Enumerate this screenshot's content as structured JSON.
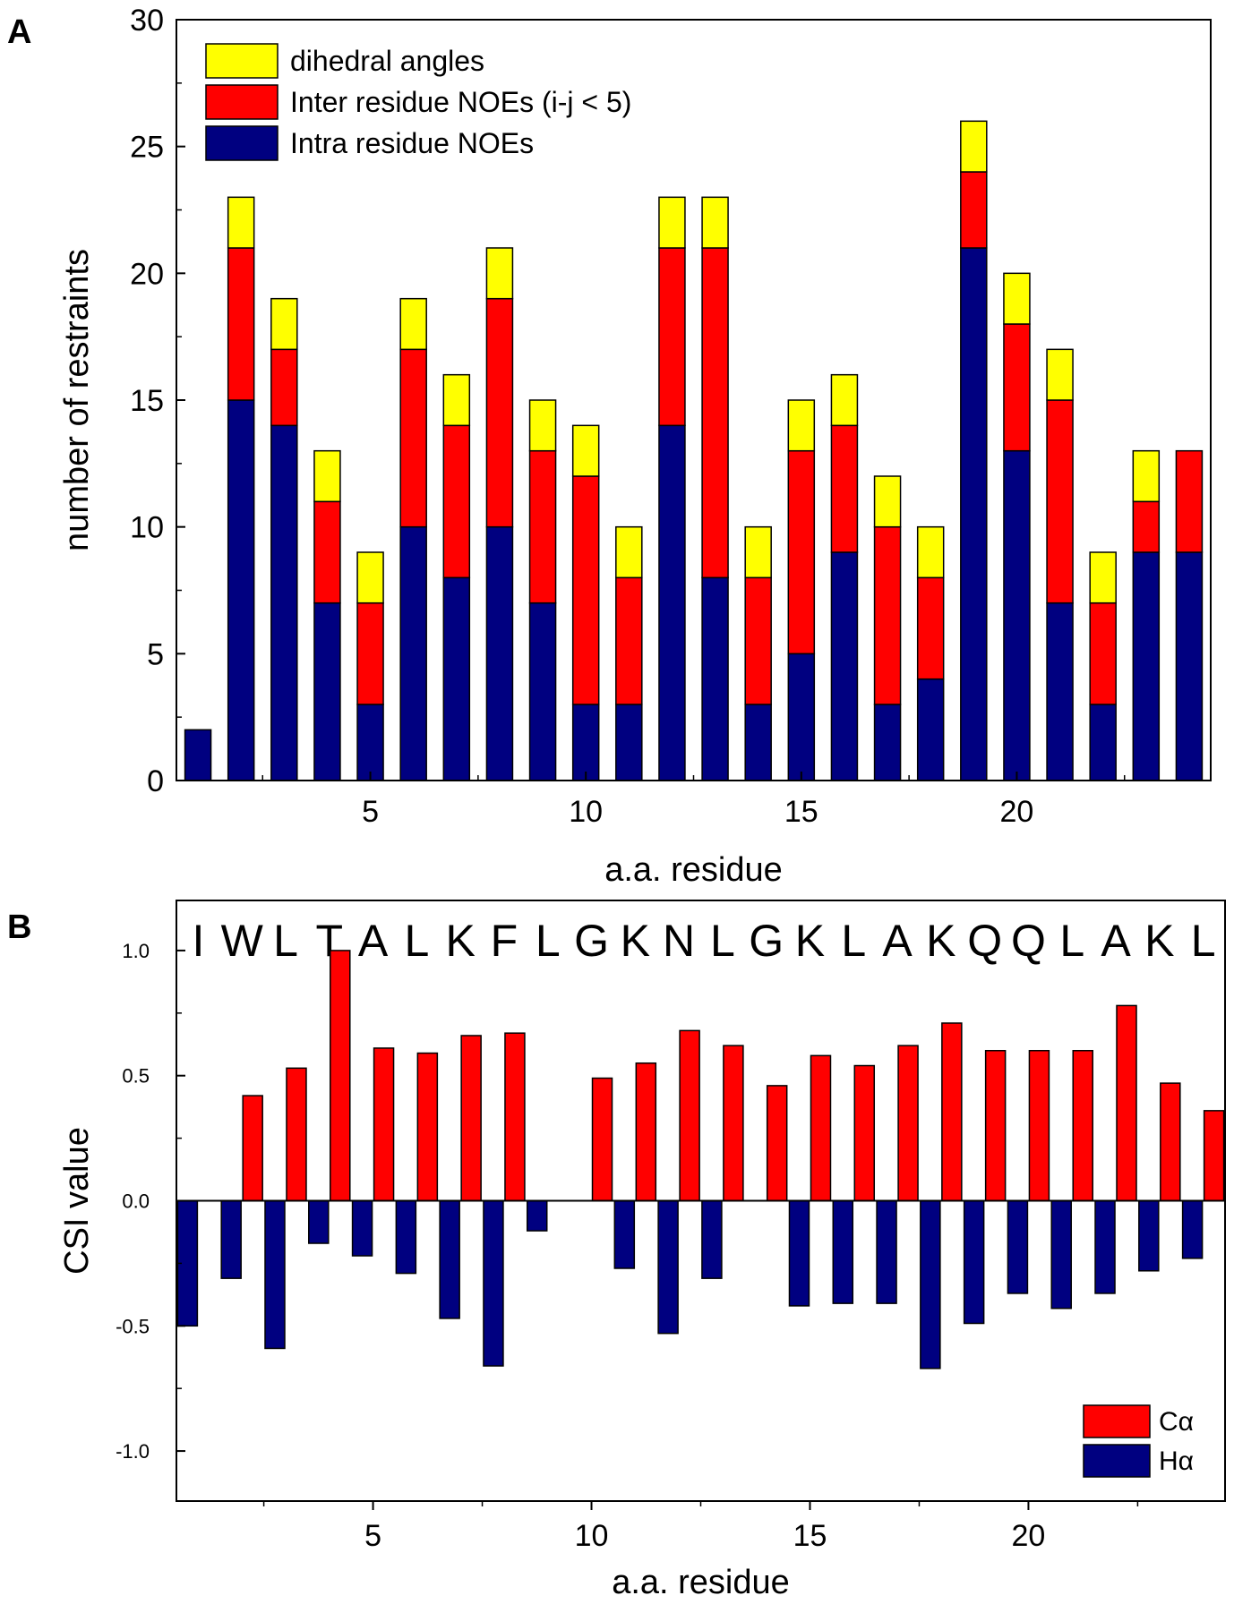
{
  "colors": {
    "dihedral": "#ffff00",
    "inter": "#ff0000",
    "intra": "#000080",
    "calpha": "#ff0000",
    "halpha": "#000080",
    "axis": "#000000"
  },
  "chart_data": [
    {
      "panel": "A",
      "type": "bar",
      "stacked": true,
      "xlabel": "a.a. residue",
      "ylabel": "number of restraints",
      "xlim": [
        0.5,
        24.5
      ],
      "ylim": [
        0,
        30
      ],
      "xticks": [
        5,
        10,
        15,
        20
      ],
      "yticks": [
        0,
        5,
        10,
        15,
        20,
        25,
        30
      ],
      "legend_position": "top-left",
      "x": [
        1,
        2,
        3,
        4,
        5,
        6,
        7,
        8,
        9,
        10,
        11,
        12,
        13,
        14,
        15,
        16,
        17,
        18,
        19,
        20,
        21,
        22,
        23,
        24
      ],
      "series": [
        {
          "name": "Intra residue NOEs",
          "key": "intra",
          "values": [
            2,
            15,
            14,
            7,
            3,
            10,
            8,
            10,
            7,
            3,
            3,
            14,
            8,
            3,
            5,
            9,
            3,
            4,
            21,
            13,
            7,
            3,
            9,
            9
          ]
        },
        {
          "name": "Inter residue NOEs (i-j < 5)",
          "key": "inter",
          "values": [
            0,
            6,
            3,
            4,
            4,
            7,
            6,
            9,
            6,
            9,
            5,
            7,
            13,
            5,
            8,
            5,
            7,
            4,
            3,
            5,
            8,
            4,
            2,
            4
          ]
        },
        {
          "name": "dihedral angles",
          "key": "dihedral",
          "values": [
            0,
            2,
            2,
            2,
            2,
            2,
            2,
            2,
            2,
            2,
            2,
            2,
            2,
            2,
            2,
            2,
            2,
            2,
            2,
            2,
            2,
            2,
            2,
            0
          ]
        }
      ],
      "legend_order": [
        "dihedral",
        "inter",
        "intra"
      ]
    },
    {
      "panel": "B",
      "type": "bar",
      "grouped": true,
      "xlabel": "a.a. residue",
      "ylabel": "CSI value",
      "xlim": [
        0.5,
        24.5
      ],
      "ylim": [
        -1.2,
        1.2
      ],
      "xticks": [
        5,
        10,
        15,
        20
      ],
      "yticks": [
        -1.0,
        -0.5,
        0.0,
        0.5,
        1.0
      ],
      "ytick_labels": [
        "-1.0",
        "-0.5",
        "0.0",
        "0.5",
        "1.0"
      ],
      "legend_position": "bottom-right",
      "sequence": [
        "I",
        "W",
        "L",
        "T",
        "A",
        "L",
        "K",
        "F",
        "L",
        "G",
        "K",
        "N",
        "L",
        "G",
        "K",
        "L",
        "A",
        "K",
        "Q",
        "Q",
        "L",
        "A",
        "K",
        "L"
      ],
      "x": [
        1,
        2,
        3,
        4,
        5,
        6,
        7,
        8,
        9,
        10,
        11,
        12,
        13,
        14,
        15,
        16,
        17,
        18,
        19,
        20,
        21,
        22,
        23,
        24
      ],
      "series": [
        {
          "name": "Cα",
          "key": "calpha",
          "values": [
            0,
            0.42,
            0.53,
            1.0,
            0.61,
            0.59,
            0.66,
            0.67,
            0,
            0.49,
            0.55,
            0.68,
            0.62,
            0.46,
            0.58,
            0.54,
            0.62,
            0.71,
            0.6,
            0.6,
            0.6,
            0.78,
            0.47,
            0.36
          ]
        },
        {
          "name": "Hα",
          "key": "halpha",
          "values": [
            -0.5,
            -0.31,
            -0.59,
            -0.17,
            -0.22,
            -0.29,
            -0.47,
            -0.66,
            -0.12,
            0,
            -0.27,
            -0.53,
            -0.31,
            0,
            -0.42,
            -0.41,
            -0.41,
            -0.67,
            -0.49,
            -0.37,
            -0.43,
            -0.37,
            -0.28,
            -0.23
          ]
        }
      ]
    }
  ]
}
